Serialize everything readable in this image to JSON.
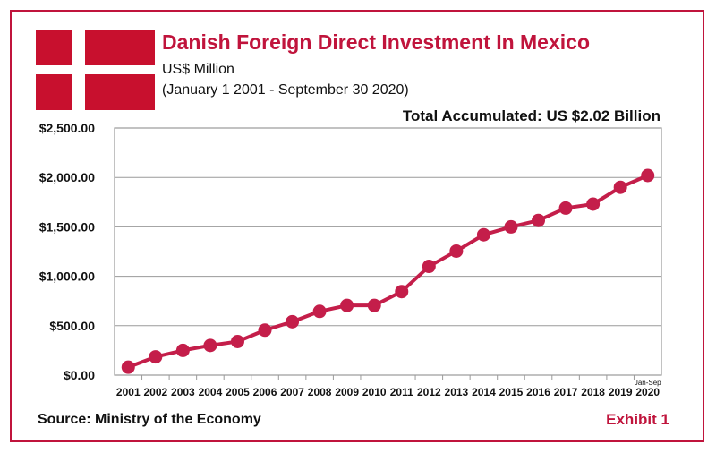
{
  "header": {
    "title": "Danish Foreign Direct Investment In Mexico",
    "unit": "US$ Million",
    "period": "(January 1 2001 - September 30 2020)",
    "total": "Total Accumulated: US $2.02 Billion"
  },
  "footer": {
    "source": "Source: Ministry of the Economy",
    "exhibit": "Exhibit 1"
  },
  "flag": {
    "icon": "denmark-flag-icon",
    "red": "#c8102e",
    "cross": "#ffffff"
  },
  "colors": {
    "accent": "#c0143c",
    "series": "#c41e4a",
    "grid": "#9a9a9a"
  },
  "chart_data": {
    "type": "line",
    "title": "Danish Foreign Direct Investment In Mexico",
    "ylim": [
      0,
      2500
    ],
    "grid": true,
    "y_tick_labels": [
      "$0.00",
      "$500.00",
      "$1,000.00",
      "$1,500.00",
      "$2,000.00",
      "$2,500.00"
    ],
    "y_ticks": [
      0,
      500,
      1000,
      1500,
      2000,
      2500
    ],
    "categories": [
      "2001",
      "2002",
      "2003",
      "2004",
      "2005",
      "2006",
      "2007",
      "2008",
      "2009",
      "2010",
      "2011",
      "2012",
      "2013",
      "2014",
      "2015",
      "2016",
      "2017",
      "2018",
      "2019",
      "2020"
    ],
    "last_category_note": "Jan-Sep",
    "series": [
      {
        "values": [
          80,
          185,
          250,
          300,
          340,
          455,
          540,
          645,
          705,
          705,
          845,
          1100,
          1255,
          1420,
          1500,
          1565,
          1690,
          1730,
          1900,
          2020
        ]
      }
    ]
  }
}
